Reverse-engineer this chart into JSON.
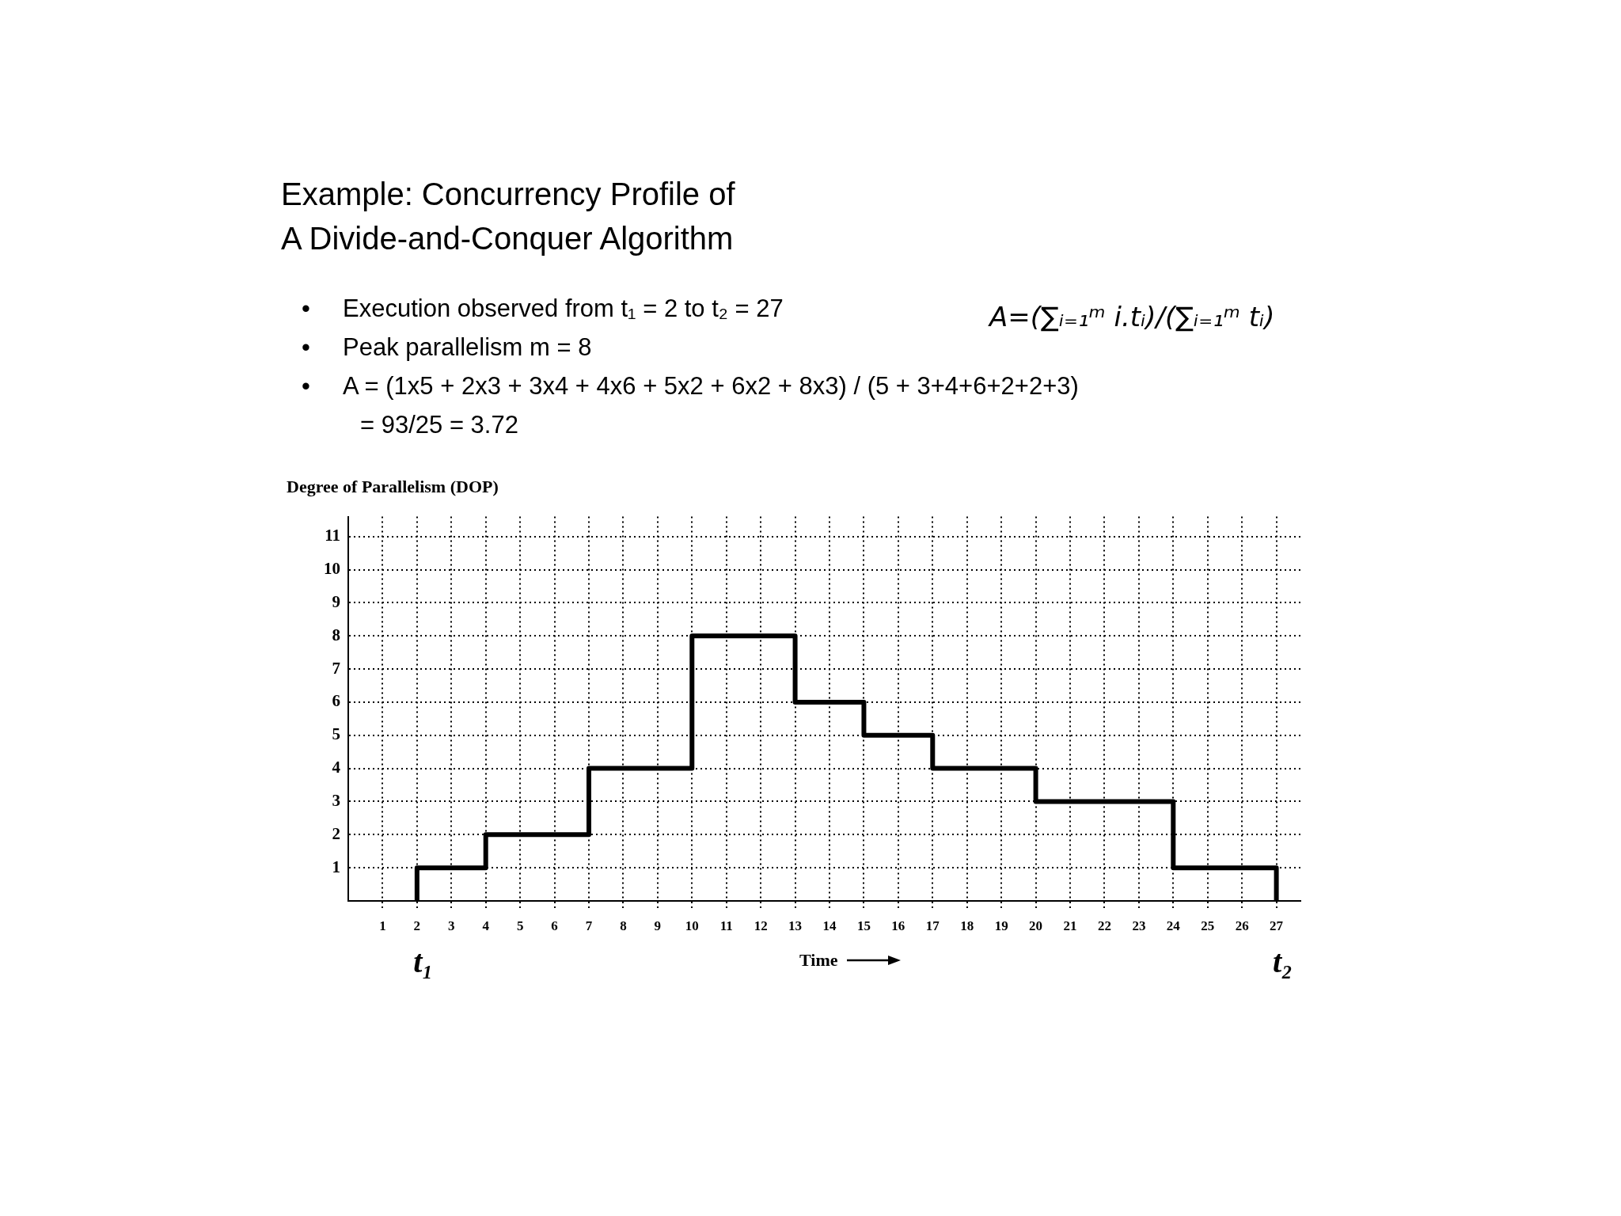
{
  "chart_data": {
    "type": "step",
    "title": "Example: Concurrency Profile of\nA Divide-and-Conquer Algorithm",
    "ylabel": "Degree of Parallelism (DOP)",
    "xlabel": "Time",
    "annotations": [
      "•\tExecution observed from t₁ = 2 to t₂ = 27",
      "•\tPeak parallelism m = 8",
      "•\tA = (1x5 + 2x3 + 3x4 + 4x6 + 5x2 + 6x2 + 8x3) / (5 + 3+4+6+2+2+3)",
      "= 93/25 = 3.72",
      "A=(∑ᵢ₌₁ᵐ i.tᵢ)/(∑ᵢ₌₁ᵐ tᵢ)",
      {
        "text": "t₁",
        "x": 2,
        "y": 0
      },
      {
        "text": "t₂",
        "x": 27,
        "y": 0
      }
    ],
    "x": [
      2,
      2,
      4,
      7,
      10,
      13,
      15,
      17,
      20,
      24,
      27
    ],
    "series": [
      {
        "color": "#000000",
        "values": [
          0,
          1,
          2,
          4,
          8,
          6,
          5,
          4,
          3,
          1,
          0
        ]
      }
    ],
    "xlim": [
      0,
      27.7
    ],
    "ylim": [
      0,
      11.6
    ],
    "xticks": [
      1,
      2,
      3,
      4,
      5,
      6,
      7,
      8,
      9,
      10,
      11,
      12,
      13,
      14,
      15,
      16,
      17,
      18,
      19,
      20,
      21,
      22,
      23,
      24,
      25,
      26,
      27
    ],
    "yticks": [
      1,
      2,
      3,
      4,
      5,
      6,
      7,
      8,
      9,
      10,
      11
    ],
    "grid": true,
    "marker": "none",
    "line_style": "solid"
  }
}
